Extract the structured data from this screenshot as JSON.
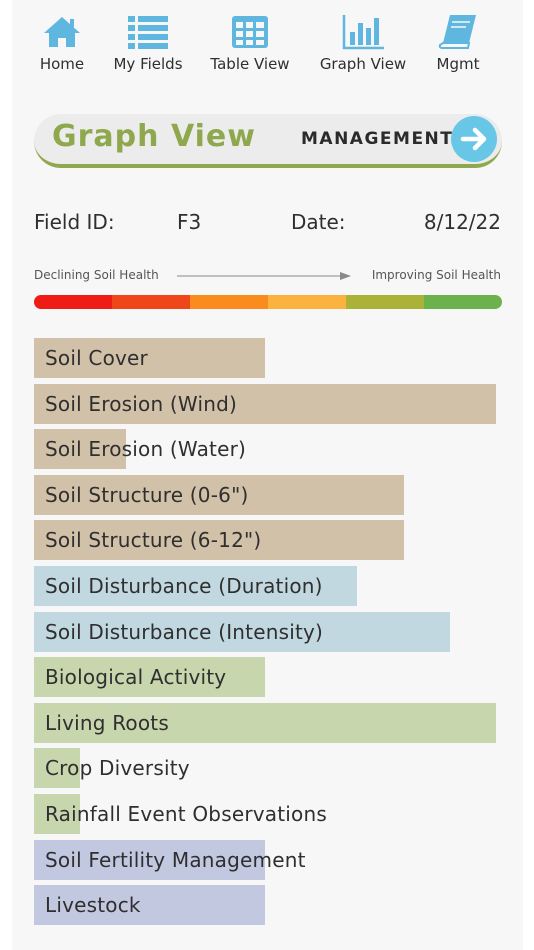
{
  "nav": {
    "items": [
      {
        "label": "Home",
        "icon": "home-icon"
      },
      {
        "label": "My Fields",
        "icon": "list-icon"
      },
      {
        "label": "Table View",
        "icon": "table-icon"
      },
      {
        "label": "Graph View",
        "icon": "bar-chart-icon"
      },
      {
        "label": "Mgmt",
        "icon": "book-icon"
      }
    ]
  },
  "banner": {
    "title": "Graph View",
    "link_label": "MANAGEMENT",
    "title_color": "#8fa84e",
    "button_color": "#68c7e6"
  },
  "field": {
    "id_label": "Field ID:",
    "id_value": "F3",
    "date_label": "Date:",
    "date_value": "8/12/22"
  },
  "scale": {
    "left_label": "Declining Soil Health",
    "right_label": "Improving Soil Health",
    "colors": [
      "#ee1c14",
      "#f0471a",
      "#fa8c1e",
      "#fbb23e",
      "#aab337",
      "#6bb14c"
    ]
  },
  "chart_data": {
    "type": "bar",
    "orientation": "horizontal",
    "scale_max": 6,
    "categories": [
      "Soil Cover",
      "Soil Erosion (Wind)",
      "Soil Erosion (Water)",
      "Soil Structure (0-6\")",
      "Soil Structure (6-12\")",
      "Soil Disturbance (Duration)",
      "Soil Disturbance (Intensity)",
      "Biological Activity",
      "Living Roots",
      "Crop Diversity",
      "Rainfall Event Observations",
      "Soil Fertility Management",
      "Livestock"
    ],
    "values": [
      3,
      6,
      1.2,
      4.8,
      4.8,
      4.2,
      5.4,
      3,
      6,
      0.6,
      0.6,
      3,
      3
    ],
    "colors": [
      "#d2c1a9",
      "#d2c1a9",
      "#d2c1a9",
      "#d2c1a9",
      "#d2c1a9",
      "#c2d8e1",
      "#c2d8e1",
      "#c8d6ad",
      "#c8d6ad",
      "#c8d6ad",
      "#c8d6ad",
      "#c2c8e0",
      "#c2c8e0"
    ]
  }
}
